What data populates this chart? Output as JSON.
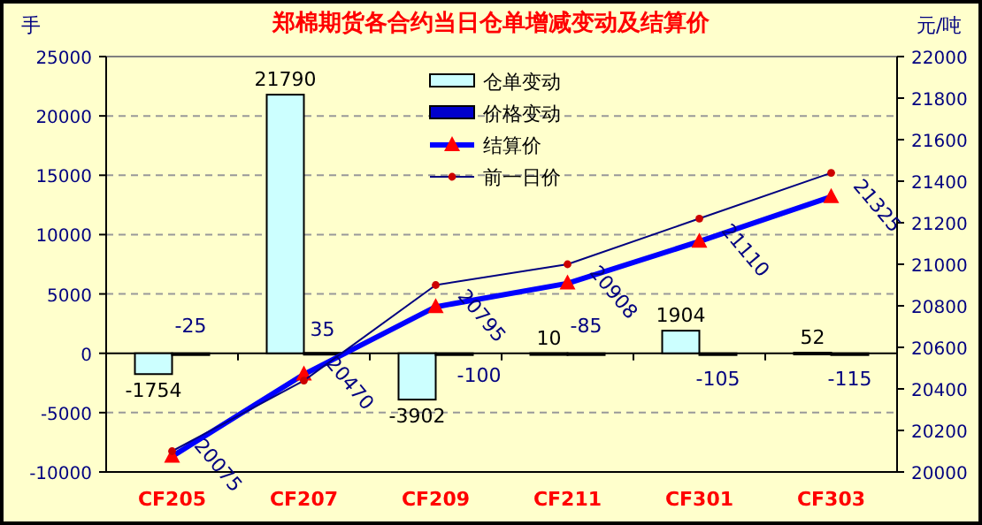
{
  "chart_data": {
    "type": "bar",
    "title": "郑棉期货各合约当日仓单增减变动及结算价",
    "ylabel": "手",
    "y2label": "元/吨",
    "categories": [
      "CF205",
      "CF207",
      "CF209",
      "CF211",
      "CF301",
      "CF303"
    ],
    "series": [
      {
        "name": "仓单变动",
        "color": "#ccffff",
        "values": [
          -1754,
          21790,
          -3902,
          10,
          1904,
          52
        ],
        "value_labels": [
          "-1754",
          "21790",
          "-3902",
          "10",
          "1904",
          "52"
        ]
      },
      {
        "name": "价格变动",
        "color": "#0000cc",
        "values": [
          -25,
          35,
          -100,
          -85,
          -105,
          -115
        ],
        "value_labels": [
          "-25",
          "35",
          "-100",
          "-85",
          "-105",
          "-115"
        ]
      },
      {
        "name": "结算价",
        "type": "line",
        "axis": "y2",
        "color": "#0000ff",
        "marker": "triangle",
        "values": [
          20075,
          20470,
          20795,
          20908,
          21110,
          21325
        ],
        "value_labels": [
          "20075",
          "20470",
          "20795",
          "20908",
          "21110",
          "21325"
        ]
      },
      {
        "name": "前一日价",
        "type": "line",
        "axis": "y2",
        "color": "#000080",
        "marker": "circle",
        "values": [
          20100,
          20440,
          20900,
          21000,
          21220,
          21440
        ]
      }
    ],
    "ylim": [
      -10000,
      25000
    ],
    "yticks": [
      -10000,
      -5000,
      0,
      5000,
      10000,
      15000,
      20000,
      25000
    ],
    "y2lim": [
      20000,
      22000
    ],
    "y2ticks": [
      20000,
      20200,
      20400,
      20600,
      20800,
      21000,
      21200,
      21400,
      21600,
      21800,
      22000
    ],
    "grid": "y",
    "legend": "top"
  }
}
